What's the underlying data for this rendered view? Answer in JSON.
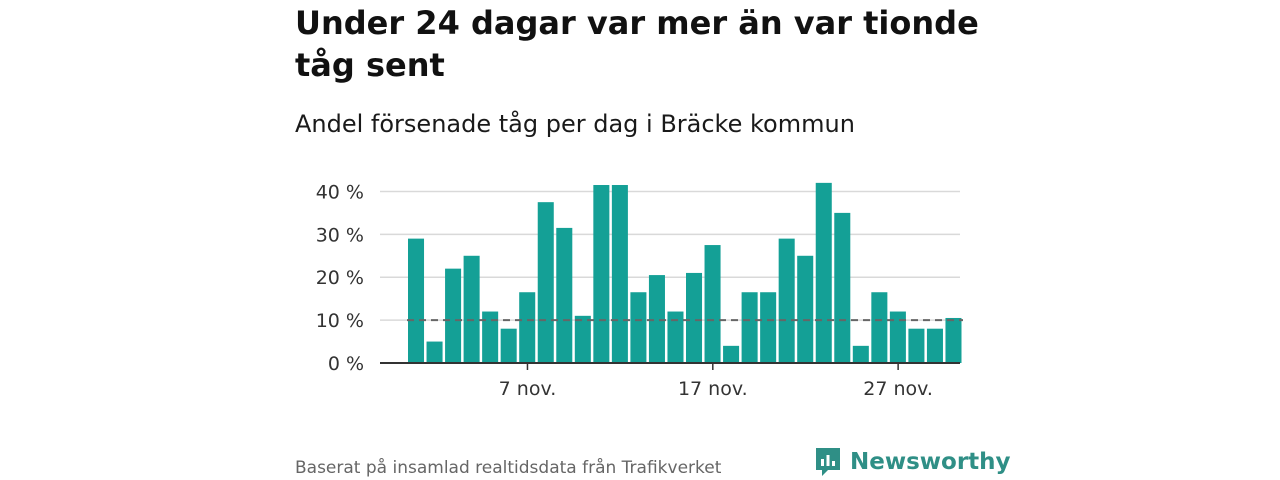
{
  "header": {
    "title": "Under 24 dagar var mer än var tionde tåg sent",
    "subtitle": "Andel försenade tåg per dag i Bräcke kommun"
  },
  "footer": {
    "source": "Baserat på insamlad realtidsdata från Trafikverket",
    "brand": "Newsworthy",
    "logo_icon": "newsworthy-logo-icon"
  },
  "colors": {
    "bar": "#14a096",
    "grid": "#d9d9d9",
    "axis": "#333333",
    "reference_line": "#666666",
    "brand": "#2f8f86"
  },
  "chart_data": {
    "type": "bar",
    "categories": [
      "1 nov.",
      "2 nov.",
      "3 nov.",
      "4 nov.",
      "5 nov.",
      "6 nov.",
      "7 nov.",
      "8 nov.",
      "9 nov.",
      "10 nov.",
      "11 nov.",
      "12 nov.",
      "13 nov.",
      "14 nov.",
      "15 nov.",
      "16 nov.",
      "17 nov.",
      "18 nov.",
      "19 nov.",
      "20 nov.",
      "21 nov.",
      "22 nov.",
      "23 nov.",
      "24 nov.",
      "25 nov.",
      "26 nov.",
      "27 nov.",
      "28 nov.",
      "29 nov.",
      "30 nov."
    ],
    "values": [
      29,
      5,
      22,
      25,
      12,
      8,
      16.5,
      37.5,
      31.5,
      11,
      41.5,
      41.5,
      16.5,
      20.5,
      12,
      21,
      27.5,
      4,
      16.5,
      16.5,
      29,
      25,
      42,
      35,
      4,
      16.5,
      12,
      8,
      8,
      10.5
    ],
    "y_unit": "%",
    "ylim": [
      0,
      45
    ],
    "y_ticks": [
      {
        "value": 0,
        "label": "0 %"
      },
      {
        "value": 10,
        "label": "10 %"
      },
      {
        "value": 20,
        "label": "20 %"
      },
      {
        "value": 30,
        "label": "30 %"
      },
      {
        "value": 40,
        "label": "40 %"
      }
    ],
    "x_ticks": [
      {
        "index": 6,
        "label": "7 nov."
      },
      {
        "index": 16,
        "label": "17 nov."
      },
      {
        "index": 26,
        "label": "27 nov."
      }
    ],
    "reference_line": {
      "value": 10,
      "style": "dashed"
    },
    "grid": true,
    "legend": "none"
  }
}
